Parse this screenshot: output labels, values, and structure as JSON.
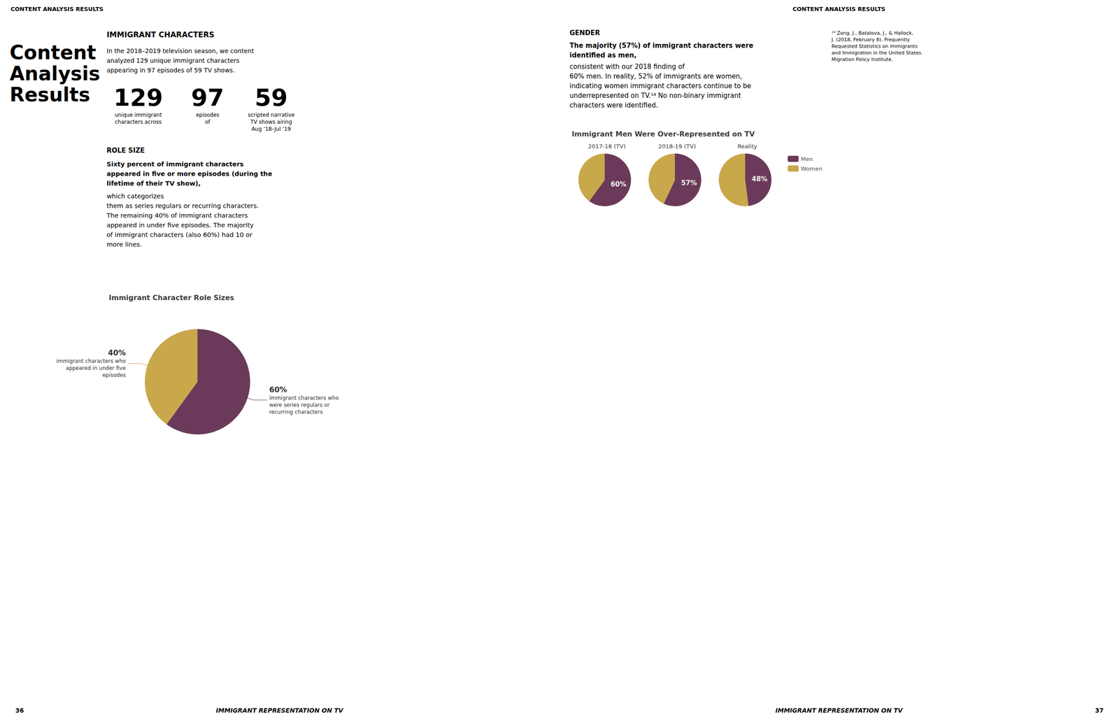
{
  "chart_data": [
    {
      "type": "pie",
      "title": "Immigrant Character Role Sizes",
      "categories": [
        "immigrant characters who\nwere series regulars or\nrecurring characters",
        "immigrant characters who\nappeared in under five\nepisodes"
      ],
      "values": [
        60,
        40
      ],
      "value_labels": [
        "60%",
        "40%"
      ],
      "colors": [
        "#6b3a5a",
        "#c9a84c"
      ],
      "data_labels": true
    },
    {
      "type": "pie",
      "title": "Immigrant Men Were Over-Represented on TV",
      "categories": [
        "Men",
        "Women"
      ],
      "colors": [
        "#6b3a5a",
        "#c9a84c"
      ],
      "legend": "right",
      "data_labels": true,
      "series": [
        {
          "name": "2017-18 (TV)",
          "values": [
            60,
            40
          ],
          "value_labels": [
            "60%",
            null
          ]
        },
        {
          "name": "2018-19 (TV)",
          "values": [
            57,
            43
          ],
          "value_labels": [
            "57%",
            null
          ]
        },
        {
          "name": "Reality",
          "values": [
            48,
            52
          ],
          "value_labels": [
            "48%",
            null
          ]
        }
      ]
    }
  ],
  "annotations": [
    "CONTENT ANALYSIS RESULTS",
    "Content\nAnalysis\nResults",
    "IMMIGRANT CHARACTERS",
    "In the 2018–2019 television season, we content\nanalyzed 129 unique immigrant characters\nappearing in 97 episodes of 59 TV shows.",
    "129",
    "unique immigrant\ncharacters across",
    "97",
    "episodes\nof",
    "59",
    "scripted narrative\nTV shows airing\nAug ‘18–Jul ‘19",
    "ROLE SIZE",
    "Sixty percent of immigrant characters\nappeared in five or more episodes (during the\nlifetime of their TV show),",
    "which categorizes\nthem as series regulars or recurring characters.\nThe remaining 40% of immigrant characters\nappeared in under five episodes. The majority\nof immigrant characters (also 60%) had 10 or\nmore lines.",
    "GENDER",
    "The majority (57%) of immigrant characters were\nidentified as men,",
    "consistent with our 2018 finding of\n60% men. In reality, 52% of immigrants are women,\nindicating women immigrant characters continue to be\nunderrepresented on TV.¹⁴ No non-binary immigrant\ncharacters were identified.",
    "¹⁴ Zong, J., Batalova, J., & Hallock,\nJ. (2018, February 8). Frequently\nRequested Statistics on Immigrants\nand Immigration in the United States.\nMigration Policy Institute.",
    "36",
    "IMMIGRANT REPRESENTATION ON TV",
    "37"
  ]
}
